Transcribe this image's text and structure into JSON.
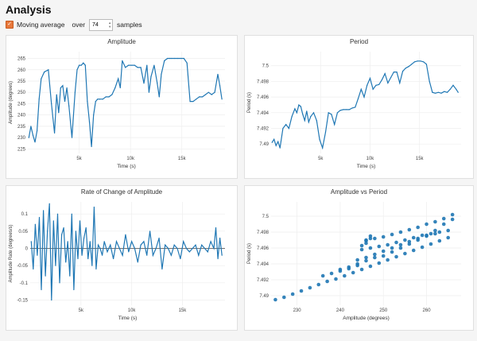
{
  "page": {
    "title": "Analysis"
  },
  "controls": {
    "moving_average_label": "Moving average",
    "moving_average_checked": true,
    "over_label": "over",
    "samples_value": "74",
    "samples_label": "samples"
  },
  "accent_color": "#e8793c",
  "series_color": "#1f77b4",
  "chart_data": [
    {
      "type": "line",
      "title": "Amplitude",
      "xlabel": "Time (s)",
      "ylabel": "Amplitude (degrees)",
      "xlim": [
        0,
        19200
      ],
      "ylim": [
        223,
        268
      ],
      "xticks": [
        5000,
        10000,
        15000
      ],
      "xtick_labels": [
        "5k",
        "10k",
        "15k"
      ],
      "yticks": [
        225,
        230,
        235,
        240,
        245,
        250,
        255,
        260,
        265
      ],
      "x": [
        100,
        300,
        500,
        700,
        900,
        1100,
        1300,
        1600,
        2000,
        2300,
        2600,
        2800,
        3000,
        3200,
        3400,
        3600,
        3800,
        4000,
        4300,
        4600,
        4800,
        5000,
        5200,
        5400,
        5600,
        5800,
        6000,
        6200,
        6400,
        6600,
        6800,
        7000,
        7300,
        7600,
        7900,
        8200,
        8500,
        8800,
        9000,
        9200,
        9500,
        9800,
        10100,
        10400,
        10700,
        11000,
        11300,
        11600,
        11800,
        12000,
        12300,
        12600,
        12800,
        13000,
        13300,
        13600,
        13800,
        14000,
        14300,
        14600,
        14900,
        15200,
        15500,
        15800,
        16100,
        16400,
        16700,
        17000,
        17300,
        17600,
        17900,
        18200,
        18500,
        18700,
        18900
      ],
      "y": [
        230,
        235,
        231,
        228,
        233,
        247,
        256,
        259,
        260,
        245,
        232,
        249,
        241,
        252,
        253,
        246,
        252,
        244,
        230,
        250,
        260,
        262,
        262,
        263,
        262,
        246,
        237,
        226,
        240,
        246,
        247,
        247,
        247,
        248,
        248,
        249,
        252,
        256,
        252,
        264,
        261,
        262,
        262,
        262,
        261,
        261,
        254,
        262,
        250,
        257,
        262,
        254,
        248,
        258,
        264,
        265,
        265,
        265,
        265,
        265,
        265,
        265,
        263,
        246,
        246,
        247,
        248,
        248,
        249,
        250,
        249,
        250,
        258,
        253,
        247
      ]
    },
    {
      "type": "line",
      "title": "Period",
      "xlabel": "Time (s)",
      "ylabel": "Period (s)",
      "xlim": [
        0,
        19200
      ],
      "ylim": [
        7.4888,
        7.5018
      ],
      "xticks": [
        5000,
        10000,
        15000
      ],
      "xtick_labels": [
        "5k",
        "10k",
        "15k"
      ],
      "yticks": [
        7.49,
        7.492,
        7.494,
        7.496,
        7.498,
        7.5
      ],
      "ytick_labels": [
        "7.49",
        "7.492",
        "7.494",
        "7.496",
        "7.498",
        "7.5"
      ],
      "x": [
        100,
        300,
        500,
        700,
        900,
        1200,
        1500,
        1800,
        2100,
        2400,
        2600,
        2800,
        3000,
        3200,
        3400,
        3600,
        3800,
        4000,
        4300,
        4600,
        4900,
        5200,
        5500,
        5800,
        6100,
        6400,
        6700,
        7000,
        7300,
        7600,
        7900,
        8200,
        8500,
        8800,
        9100,
        9400,
        9700,
        10000,
        10300,
        10600,
        10900,
        11200,
        11500,
        11800,
        12100,
        12400,
        12700,
        13000,
        13300,
        13600,
        13900,
        14200,
        14500,
        14800,
        15100,
        15400,
        15700,
        16000,
        16300,
        16600,
        16900,
        17200,
        17500,
        17800,
        18100,
        18400,
        18700,
        18900
      ],
      "y": [
        7.4902,
        7.4906,
        7.4898,
        7.4903,
        7.4895,
        7.492,
        7.4925,
        7.492,
        7.4935,
        7.4945,
        7.494,
        7.495,
        7.4948,
        7.4938,
        7.493,
        7.4942,
        7.4928,
        7.4935,
        7.494,
        7.493,
        7.4906,
        7.4895,
        7.4915,
        7.494,
        7.4938,
        7.4925,
        7.494,
        7.4943,
        7.4944,
        7.4944,
        7.4944,
        7.4946,
        7.4947,
        7.4958,
        7.497,
        7.496,
        7.4975,
        7.4984,
        7.497,
        7.4975,
        7.4976,
        7.4982,
        7.499,
        7.4978,
        7.4985,
        7.4992,
        7.4992,
        7.4978,
        7.4993,
        7.4997,
        7.4999,
        7.5002,
        7.5005,
        7.5006,
        7.5006,
        7.5005,
        7.5002,
        7.498,
        7.4966,
        7.4965,
        7.4966,
        7.4965,
        7.4967,
        7.4966,
        7.497,
        7.4975,
        7.497,
        7.4966
      ]
    },
    {
      "type": "line",
      "title": "Rate of Change of Amplitude",
      "xlabel": "Time (s)",
      "ylabel": "Amplitude Rate (degrees/s)",
      "xlim": [
        0,
        19200
      ],
      "ylim": [
        -0.165,
        0.135
      ],
      "xticks": [
        5000,
        10000,
        15000
      ],
      "xtick_labels": [
        "5k",
        "10k",
        "15k"
      ],
      "yticks": [
        -0.15,
        -0.1,
        -0.05,
        0,
        0.05,
        0.1
      ],
      "ytick_labels": [
        "-0.15",
        "-0.1",
        "-0.05",
        "0",
        "0.05",
        "0.1"
      ],
      "x": [
        100,
        300,
        500,
        700,
        900,
        1100,
        1300,
        1500,
        1700,
        1900,
        2100,
        2300,
        2500,
        2700,
        2900,
        3100,
        3300,
        3500,
        3700,
        3900,
        4100,
        4300,
        4500,
        4700,
        4900,
        5100,
        5300,
        5500,
        5700,
        5900,
        6100,
        6300,
        6500,
        6700,
        6900,
        7100,
        7300,
        7600,
        7900,
        8200,
        8500,
        8800,
        9100,
        9400,
        9700,
        10000,
        10300,
        10600,
        10900,
        11200,
        11500,
        11800,
        12100,
        12400,
        12700,
        13000,
        13300,
        13600,
        13900,
        14200,
        14500,
        14800,
        15100,
        15400,
        15700,
        16000,
        16300,
        16600,
        16900,
        17200,
        17500,
        17800,
        18100,
        18300,
        18500,
        18700,
        18900
      ],
      "y": [
        0.02,
        -0.06,
        0.07,
        -0.02,
        0.09,
        -0.12,
        0.11,
        -0.08,
        0.05,
        0.13,
        -0.15,
        0.08,
        -0.05,
        0.1,
        -0.1,
        0.04,
        0.06,
        -0.04,
        0.02,
        -0.08,
        0.1,
        -0.12,
        0.05,
        -0.03,
        0.08,
        -0.02,
        0.03,
        0.06,
        -0.03,
        0.02,
        -0.05,
        0.12,
        -0.06,
        0.01,
        0.0,
        -0.02,
        0.02,
        -0.01,
        0.01,
        -0.03,
        0.02,
        0.0,
        -0.02,
        0.04,
        -0.01,
        0.02,
        0.0,
        -0.04,
        0.01,
        0.02,
        -0.02,
        0.05,
        -0.02,
        0.0,
        0.03,
        -0.06,
        0.01,
        0.0,
        -0.02,
        0.01,
        0.0,
        -0.03,
        0.02,
        0.0,
        -0.01,
        0.0,
        0.01,
        -0.02,
        0.01,
        0.0,
        -0.01,
        0.02,
        0.0,
        0.06,
        -0.03,
        0.03,
        -0.02
      ]
    },
    {
      "type": "scatter",
      "title": "Amplitude vs Period",
      "xlabel": "Amplitude (degrees)",
      "ylabel": "Period (s)",
      "xlim": [
        224,
        268
      ],
      "ylim": [
        7.4888,
        7.5018
      ],
      "xticks": [
        230,
        240,
        250,
        260
      ],
      "yticks": [
        7.49,
        7.492,
        7.494,
        7.496,
        7.498,
        7.5
      ],
      "ytick_labels": [
        "7.49",
        "7.492",
        "7.494",
        "7.496",
        "7.498",
        "7.5"
      ],
      "x": [
        225,
        227,
        229,
        231,
        233,
        235,
        237,
        239,
        241,
        243,
        245,
        247,
        249,
        251,
        253,
        255,
        257,
        259,
        261,
        263,
        265,
        246,
        248,
        250,
        252,
        254,
        256,
        258,
        260,
        262,
        264,
        266,
        247,
        249,
        251,
        253,
        255,
        257,
        259,
        261,
        263,
        265,
        244,
        246,
        248,
        250,
        252,
        254,
        256,
        258,
        260,
        262,
        240,
        242,
        244,
        246,
        248,
        236,
        238,
        240,
        242,
        244,
        250,
        252,
        254,
        256,
        258,
        260,
        262,
        264,
        266,
        245,
        245,
        246,
        246,
        247,
        247
      ],
      "y": [
        7.4895,
        7.4898,
        7.4902,
        7.4906,
        7.491,
        7.4914,
        7.4918,
        7.4921,
        7.4925,
        7.4929,
        7.4933,
        7.4937,
        7.4941,
        7.4945,
        7.4949,
        7.4953,
        7.4957,
        7.4961,
        7.4965,
        7.4969,
        7.4973,
        7.497,
        7.4972,
        7.4974,
        7.4977,
        7.498,
        7.4983,
        7.4986,
        7.499,
        7.4993,
        7.4997,
        7.5002,
        7.496,
        7.4962,
        7.4964,
        7.4967,
        7.497,
        7.4973,
        7.4976,
        7.4978,
        7.498,
        7.4982,
        7.4945,
        7.4948,
        7.4952,
        7.4956,
        7.496,
        7.4964,
        7.4968,
        7.4972,
        7.4975,
        7.4978,
        7.4933,
        7.4936,
        7.494,
        7.4944,
        7.4948,
        7.4925,
        7.4928,
        7.4931,
        7.4934,
        7.4938,
        7.495,
        7.4955,
        7.496,
        7.4965,
        7.497,
        7.4976,
        7.4982,
        7.499,
        7.4996,
        7.4958,
        7.4963,
        7.4966,
        7.4969,
        7.4972,
        7.4975
      ]
    }
  ]
}
